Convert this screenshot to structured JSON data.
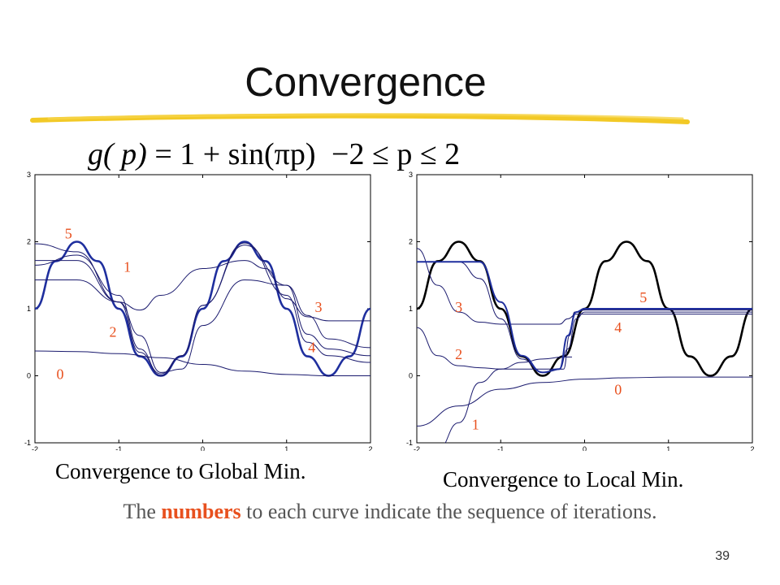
{
  "title": "Convergence",
  "formula": {
    "lhs": "g( p)",
    "eq": "=",
    "rhs": "1 + sin(πp)",
    "constraint": "−2 ≤ p ≤ 2"
  },
  "footnote": {
    "pre": "The",
    "highlight": "numbers",
    "post": "to each curve indicate the sequence of iterations."
  },
  "page_number": "39",
  "colors": {
    "accent": "#e8501e",
    "underline": "#f0c000",
    "curve": "#1f2f9e",
    "main_curve_right": "#000000",
    "iteration_curve": "#1a1a6e"
  },
  "chart_data": [
    {
      "type": "line",
      "caption": "Convergence to Global Min.",
      "xlim": [
        -2,
        2
      ],
      "ylim": [
        -1,
        3
      ],
      "xticks": [
        -2,
        -1,
        0,
        1,
        2
      ],
      "yticks": [
        -1,
        0,
        1,
        2,
        3
      ],
      "series": [
        {
          "x": [
            -2,
            -1.75,
            -1.5,
            -1.25,
            -1,
            -0.75,
            -0.5,
            -0.25,
            0,
            0.25,
            0.5,
            0.75,
            1,
            1.25,
            1.5,
            1.75,
            2
          ],
          "y": [
            1,
            1.71,
            2,
            1.71,
            1,
            0.29,
            0,
            0.29,
            1,
            1.71,
            2,
            1.71,
            1,
            0.29,
            0,
            0.29,
            1
          ]
        },
        {
          "x": [
            -2,
            -1.5,
            -1,
            -0.5,
            0,
            0.5,
            1,
            1.5,
            2
          ],
          "y": [
            0.37,
            0.36,
            0.33,
            0.27,
            0.17,
            0.07,
            0.02,
            0,
            0
          ]
        },
        {
          "x": [
            -2,
            -1.5,
            -1,
            -0.75,
            -0.5,
            0,
            0.5,
            0.75,
            1,
            1.25,
            1.5,
            2
          ],
          "y": [
            1.72,
            1.72,
            1.1,
            0.98,
            1.2,
            1.6,
            1.72,
            1.6,
            1.15,
            0.88,
            0.82,
            0.82
          ]
        },
        {
          "x": [
            -2,
            -1.5,
            -1,
            -0.75,
            -0.5,
            -0.25,
            0,
            0.5,
            1,
            1.25,
            1.5,
            2
          ],
          "y": [
            1.43,
            1.43,
            1.1,
            0.6,
            0.05,
            0.1,
            0.75,
            1.43,
            1.35,
            0.9,
            0.55,
            0.42
          ]
        },
        {
          "x": [
            -2,
            -1.5,
            -1,
            -0.75,
            -0.5,
            -0.25,
            0,
            0.5,
            1,
            1.25,
            1.5,
            2
          ],
          "y": [
            1.97,
            1.85,
            1.1,
            0.35,
            0.03,
            0.3,
            1.05,
            1.95,
            1.35,
            0.62,
            0.4,
            0.3
          ]
        },
        {
          "x": [
            -2,
            -1.5,
            -1,
            -0.75,
            -0.5,
            -0.25,
            0,
            0.5,
            1,
            1.25,
            1.5,
            2
          ],
          "y": [
            1.65,
            1.8,
            1.2,
            0.4,
            0,
            0.3,
            1.05,
            1.98,
            1.2,
            0.5,
            0.3,
            0.2
          ]
        }
      ],
      "labels": [
        {
          "text": "5",
          "x": -1.6,
          "y": 2.05
        },
        {
          "text": "1",
          "x": -0.9,
          "y": 1.55
        },
        {
          "text": "3",
          "x": 1.38,
          "y": 0.95
        },
        {
          "text": "2",
          "x": -1.07,
          "y": 0.58
        },
        {
          "text": "4",
          "x": 1.3,
          "y": 0.35
        },
        {
          "text": "0",
          "x": -1.7,
          "y": -0.05
        }
      ]
    },
    {
      "type": "line",
      "caption": "Convergence to Local Min.",
      "xlim": [
        -2,
        2
      ],
      "ylim": [
        -1,
        3
      ],
      "xticks": [
        -2,
        -1,
        0,
        1,
        2
      ],
      "yticks": [
        -1,
        0,
        1,
        2,
        3
      ],
      "series": [
        {
          "x": [
            -2,
            -1.75,
            -1.5,
            -1.25,
            -1,
            -0.75,
            -0.5,
            -0.25,
            0,
            0.25,
            0.5,
            0.75,
            1,
            1.25,
            1.5,
            1.75,
            2
          ],
          "y": [
            1,
            1.71,
            2,
            1.71,
            1,
            0.29,
            0,
            0.29,
            1,
            1.71,
            2,
            1.71,
            1,
            0.29,
            0,
            0.29,
            1
          ]
        },
        {
          "x": [
            -2,
            -1.5,
            -1.25,
            -1,
            -0.75,
            -0.5,
            -0.25,
            -0.18,
            -0.12,
            0,
            1,
            2
          ],
          "y": [
            1.7,
            1.7,
            1.45,
            0.85,
            0.25,
            0.05,
            0.1,
            0.6,
            0.95,
            0.98,
            0.98,
            0.98
          ]
        },
        {
          "x": [
            -2,
            -1.5,
            -1,
            -0.5,
            0,
            0.5,
            1,
            1.5,
            2
          ],
          "y": [
            -0.75,
            -0.45,
            -0.2,
            -0.1,
            -0.05,
            -0.03,
            -0.02,
            -0.02,
            -0.02
          ]
        },
        {
          "x": [
            -2,
            -1.75,
            -1.5,
            -1.25,
            -1,
            -0.75,
            -0.5,
            -0.25,
            -0.15
          ],
          "y": [
            -1.1,
            -1.1,
            -0.7,
            -0.1,
            0.1,
            0.2,
            0.25,
            0.28,
            0.28
          ]
        },
        {
          "x": [
            -2,
            -1.75,
            -1.5,
            -1.25,
            -1,
            -0.5,
            -0.3,
            -0.2,
            -0.1,
            0,
            1,
            2
          ],
          "y": [
            0.72,
            0.3,
            0.15,
            0.12,
            0.1,
            0.1,
            0.1,
            0.4,
            0.85,
            0.95,
            0.95,
            0.95
          ]
        },
        {
          "x": [
            -2,
            -1.75,
            -1.5,
            -1.25,
            -1,
            -0.5,
            -0.3,
            -0.2,
            -0.1,
            0,
            1,
            2
          ],
          "y": [
            1.9,
            1.35,
            0.95,
            0.8,
            0.77,
            0.77,
            0.77,
            0.85,
            0.92,
            0.92,
            0.92,
            0.92
          ]
        },
        {
          "x": [
            -2,
            -1.25,
            -1,
            -0.75,
            -0.5,
            -0.3,
            -0.2,
            -0.1,
            0,
            1,
            2
          ],
          "y": [
            1.7,
            1.7,
            1.1,
            0.3,
            0.05,
            0.1,
            0.6,
            0.95,
            1,
            1,
            1
          ]
        }
      ],
      "labels": [
        {
          "text": "3",
          "x": -1.5,
          "y": 0.95
        },
        {
          "text": "2",
          "x": -1.5,
          "y": 0.25
        },
        {
          "text": "1",
          "x": -1.3,
          "y": -0.8
        },
        {
          "text": "5",
          "x": 0.7,
          "y": 1.1
        },
        {
          "text": "4",
          "x": 0.4,
          "y": 0.65
        },
        {
          "text": "0",
          "x": 0.4,
          "y": -0.28
        }
      ]
    }
  ]
}
